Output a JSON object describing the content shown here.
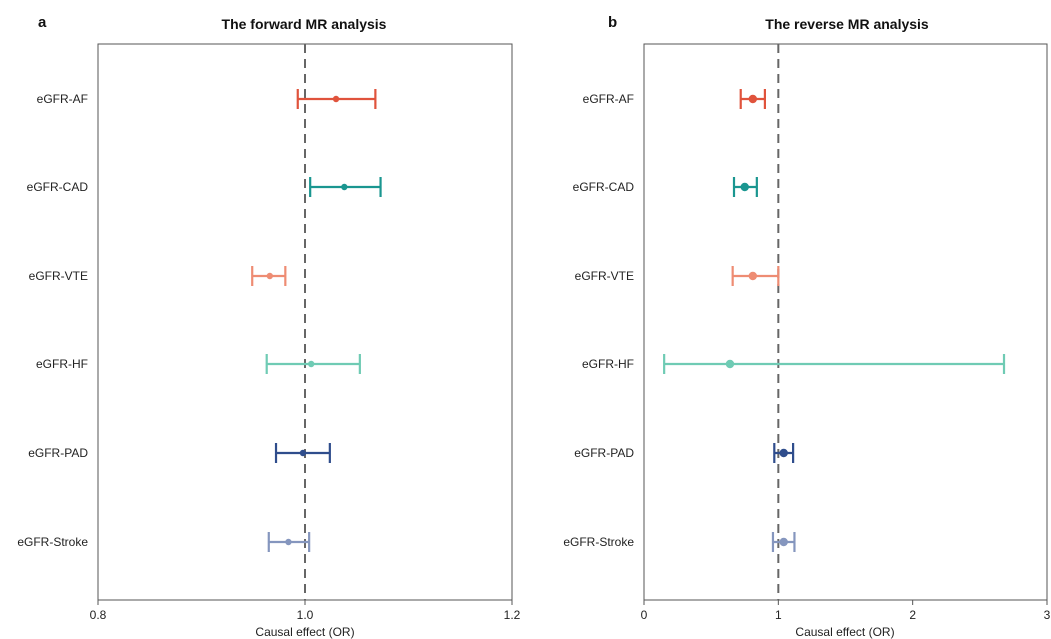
{
  "chart_data": [
    {
      "type": "forest",
      "panel_label": "a",
      "title": "The forward MR analysis",
      "xlabel": "Causal effect (OR)",
      "xlim": [
        0.8,
        1.2
      ],
      "xticks": [
        "0.8",
        "1.0",
        "1.2"
      ],
      "reference_line": 1.0,
      "rows": [
        {
          "label": "eGFR-AF",
          "estimate": 1.03,
          "lower": 0.993,
          "upper": 1.068,
          "color": "#e0533c"
        },
        {
          "label": "eGFR-CAD",
          "estimate": 1.038,
          "lower": 1.005,
          "upper": 1.073,
          "color": "#1a9690"
        },
        {
          "label": "eGFR-VTE",
          "estimate": 0.966,
          "lower": 0.949,
          "upper": 0.981,
          "color": "#ee8c73"
        },
        {
          "label": "eGFR-HF",
          "estimate": 1.006,
          "lower": 0.963,
          "upper": 1.053,
          "color": "#6fcbb4"
        },
        {
          "label": "eGFR-PAD",
          "estimate": 0.998,
          "lower": 0.972,
          "upper": 1.024,
          "color": "#2f4d8c"
        },
        {
          "label": "eGFR-Stroke",
          "estimate": 0.984,
          "lower": 0.965,
          "upper": 1.004,
          "color": "#8596be"
        }
      ]
    },
    {
      "type": "forest",
      "panel_label": "b",
      "title": "The reverse MR analysis",
      "xlabel": "Causal effect (OR)",
      "xlim": [
        0,
        3
      ],
      "xticks": [
        "0",
        "1",
        "2",
        "3"
      ],
      "reference_line": 1,
      "rows": [
        {
          "label": "eGFR-AF",
          "estimate": 0.81,
          "lower": 0.72,
          "upper": 0.9,
          "color": "#e0533c"
        },
        {
          "label": "eGFR-CAD",
          "estimate": 0.75,
          "lower": 0.67,
          "upper": 0.84,
          "color": "#1a9690"
        },
        {
          "label": "eGFR-VTE",
          "estimate": 0.81,
          "lower": 0.66,
          "upper": 1.0,
          "color": "#ee8c73"
        },
        {
          "label": "eGFR-HF",
          "estimate": 0.64,
          "lower": 0.15,
          "upper": 2.68,
          "color": "#6fcbb4"
        },
        {
          "label": "eGFR-PAD",
          "estimate": 1.04,
          "lower": 0.97,
          "upper": 1.11,
          "color": "#2f4d8c"
        },
        {
          "label": "eGFR-Stroke",
          "estimate": 1.04,
          "lower": 0.96,
          "upper": 1.12,
          "color": "#8596be"
        }
      ]
    }
  ]
}
